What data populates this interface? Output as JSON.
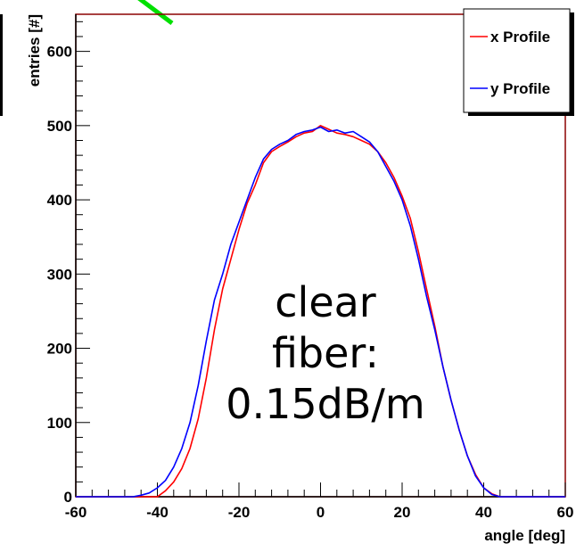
{
  "chart_data": {
    "type": "line",
    "xlabel": "angle [deg]",
    "ylabel": "entries [#]",
    "xlim": [
      -60,
      60
    ],
    "ylim": [
      0,
      650
    ],
    "x_ticks": [
      -60,
      -40,
      -20,
      0,
      20,
      40,
      60
    ],
    "y_ticks": [
      0,
      100,
      200,
      300,
      400,
      500,
      600
    ],
    "annotation": [
      "clear",
      "fiber:",
      "0.15dB/m"
    ],
    "legend_placement": "top-right",
    "colors": {
      "x": "#ff0000",
      "y": "#0000ff",
      "frame": "#000000",
      "border": "#8b0000",
      "accent": "#00e000"
    },
    "series": [
      {
        "name": "x Profile",
        "x": [
          -60,
          -42,
          -40,
          -38,
          -36,
          -34,
          -32,
          -30,
          -28,
          -26,
          -24,
          -22,
          -20,
          -18,
          -16,
          -14,
          -12,
          -10,
          -8,
          -6,
          -4,
          -2,
          0,
          2,
          4,
          6,
          8,
          10,
          12,
          14,
          16,
          18,
          20,
          22,
          24,
          26,
          28,
          30,
          32,
          34,
          36,
          38,
          40,
          42,
          44,
          46,
          60
        ],
        "values": [
          0,
          0,
          0,
          8,
          20,
          38,
          65,
          105,
          160,
          225,
          280,
          320,
          360,
          395,
          420,
          450,
          465,
          472,
          478,
          485,
          490,
          492,
          500,
          495,
          490,
          488,
          485,
          480,
          475,
          465,
          450,
          430,
          405,
          375,
          330,
          280,
          230,
          175,
          130,
          90,
          55,
          30,
          12,
          4,
          0,
          0,
          0
        ]
      },
      {
        "name": "y Profile",
        "x": [
          -60,
          -46,
          -44,
          -42,
          -40,
          -38,
          -36,
          -34,
          -32,
          -30,
          -28,
          -26,
          -24,
          -22,
          -20,
          -18,
          -16,
          -14,
          -12,
          -10,
          -8,
          -6,
          -4,
          -2,
          0,
          2,
          4,
          6,
          8,
          10,
          12,
          14,
          16,
          18,
          20,
          22,
          24,
          26,
          28,
          30,
          32,
          34,
          36,
          38,
          40,
          42,
          44,
          60
        ],
        "values": [
          0,
          0,
          2,
          5,
          12,
          22,
          40,
          65,
          100,
          150,
          210,
          265,
          300,
          340,
          370,
          400,
          430,
          455,
          468,
          475,
          480,
          488,
          492,
          494,
          498,
          492,
          494,
          490,
          492,
          485,
          478,
          465,
          445,
          425,
          400,
          365,
          320,
          270,
          225,
          175,
          130,
          90,
          55,
          28,
          12,
          3,
          0,
          0
        ]
      }
    ]
  }
}
